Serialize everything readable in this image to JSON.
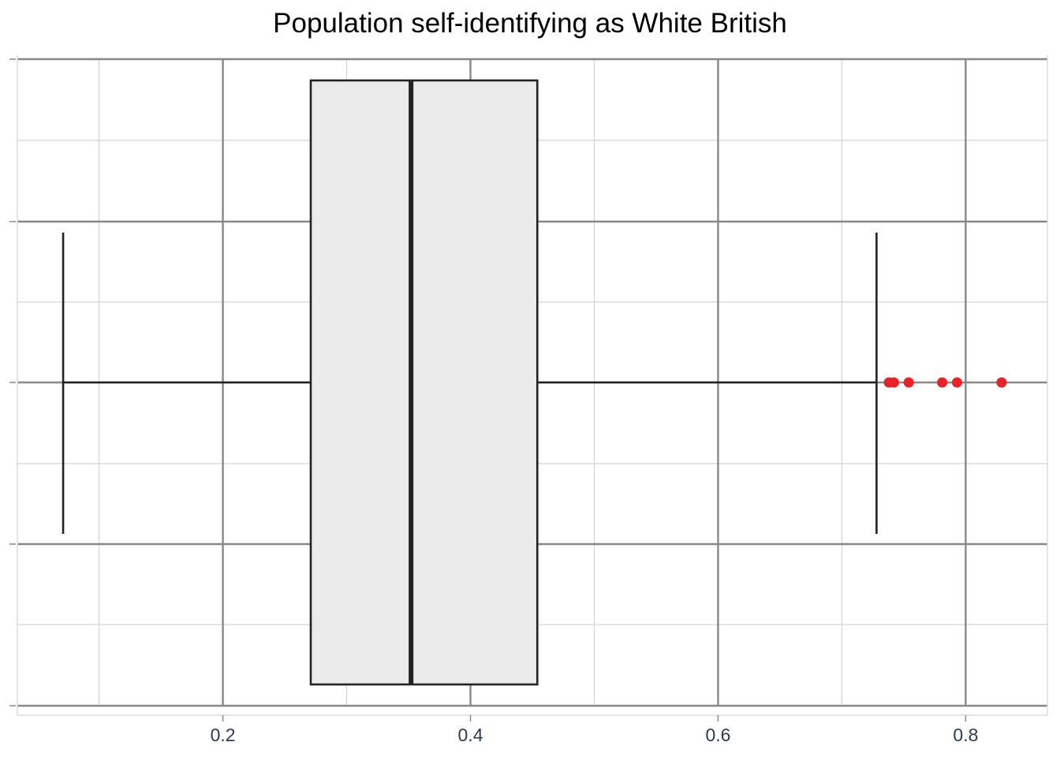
{
  "chart_data": {
    "type": "boxplot",
    "title": "Population self-identifying as White British",
    "orientation": "horizontal",
    "xlabel": "",
    "ylabel": "",
    "xlim": [
      0.034,
      0.866
    ],
    "x_ticks": [
      0.2,
      0.4,
      0.6,
      0.8
    ],
    "x_tick_labels": [
      "0.2",
      "0.4",
      "0.6",
      "0.8"
    ],
    "grid": true,
    "box": {
      "whisker_low": 0.071,
      "q1": 0.271,
      "median": 0.352,
      "q3": 0.454,
      "whisker_high": 0.728
    },
    "outliers": [
      0.738,
      0.742,
      0.754,
      0.781,
      0.793,
      0.829
    ],
    "colors": {
      "box_fill": "#ebebeb",
      "box_stroke": "#222222",
      "outlier": "#e8222a",
      "grid_major": "#888888",
      "grid_minor": "#d4d4d4",
      "tick_label": "#2e3b4a"
    }
  }
}
